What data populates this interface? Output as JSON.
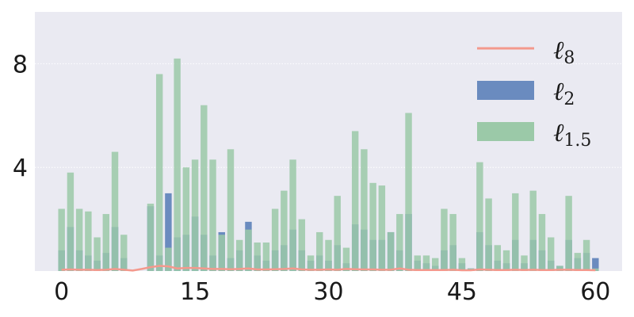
{
  "chart_data": {
    "type": "bar",
    "title": "",
    "xlabel": "",
    "ylabel": "",
    "xlim": [
      -3,
      63
    ],
    "ylim": [
      0,
      10
    ],
    "x_ticks": [
      0,
      15,
      30,
      45,
      60
    ],
    "x_tick_labels": [
      "0",
      "15",
      "30",
      "45",
      "60"
    ],
    "y_ticks": [
      4,
      8
    ],
    "y_tick_labels": [
      "4",
      "8"
    ],
    "grid": true,
    "legend_position": "top-right",
    "x": [
      0,
      1,
      2,
      3,
      4,
      5,
      6,
      7,
      8,
      9,
      10,
      11,
      12,
      13,
      14,
      15,
      16,
      17,
      18,
      19,
      20,
      21,
      22,
      23,
      24,
      25,
      26,
      27,
      28,
      29,
      30,
      31,
      32,
      33,
      34,
      35,
      36,
      37,
      38,
      39,
      40,
      41,
      42,
      43,
      44,
      45,
      46,
      47,
      48,
      49,
      50,
      51,
      52,
      53,
      54,
      55,
      56,
      57,
      58,
      59,
      60
    ],
    "series": [
      {
        "name": "ℓ8",
        "legend_base": "ℓ",
        "legend_sub": "8",
        "kind": "line",
        "color": "#f4998d",
        "values": [
          0.05,
          0.06,
          0.05,
          0.05,
          0.04,
          0.05,
          0.08,
          0.05,
          0.02,
          0.08,
          0.15,
          0.2,
          0.18,
          0.1,
          0.12,
          0.12,
          0.1,
          0.08,
          0.08,
          0.07,
          0.08,
          0.1,
          0.06,
          0.06,
          0.07,
          0.08,
          0.1,
          0.06,
          0.05,
          0.05,
          0.06,
          0.05,
          0.08,
          0.07,
          0.06,
          0.06,
          0.05,
          0.05,
          0.1,
          0.05,
          0.04,
          0.04,
          0.04,
          0.04,
          0.05,
          0.03,
          0.03,
          0.06,
          0.05,
          0.04,
          0.04,
          0.05,
          0.04,
          0.05,
          0.04,
          0.04,
          0.05,
          0.05,
          0.04,
          0.04,
          0.03
        ]
      },
      {
        "name": "ℓ2",
        "legend_base": "ℓ",
        "legend_sub": "2",
        "kind": "bar",
        "color": "#6a8bbf",
        "values": [
          0.8,
          1.7,
          0.8,
          0.6,
          0.4,
          0.7,
          1.7,
          0.5,
          0,
          0,
          2.5,
          0.6,
          3.0,
          1.3,
          1.4,
          2.1,
          1.4,
          0.6,
          1.5,
          0.5,
          0.8,
          1.9,
          0.6,
          0.4,
          0.8,
          1.0,
          1.6,
          0.8,
          0.4,
          0.6,
          0.4,
          1.0,
          0.3,
          1.8,
          1.6,
          1.2,
          1.2,
          1.5,
          0.8,
          2.2,
          0.4,
          0.3,
          0.2,
          0.8,
          1.0,
          0.3,
          0.1,
          1.5,
          1.0,
          0.4,
          0.3,
          1.2,
          0.3,
          1.2,
          0.8,
          0.4,
          0.2,
          1.2,
          0.5,
          0.7,
          0.5
        ]
      },
      {
        "name": "ℓ1.5",
        "legend_base": "ℓ",
        "legend_sub": "1.5",
        "kind": "bar",
        "color": "#9bc9a8",
        "values": [
          2.4,
          3.8,
          2.4,
          2.3,
          1.3,
          2.2,
          4.6,
          1.4,
          0,
          0,
          2.6,
          7.6,
          0.9,
          8.2,
          4.0,
          4.3,
          6.4,
          4.3,
          1.4,
          4.7,
          1.2,
          1.6,
          1.1,
          1.1,
          2.4,
          3.1,
          4.3,
          2.0,
          0.6,
          1.5,
          1.2,
          2.9,
          0.9,
          5.4,
          4.7,
          3.4,
          3.3,
          1.5,
          2.2,
          6.1,
          0.6,
          0.6,
          0.5,
          2.4,
          2.2,
          0.5,
          0.1,
          4.2,
          2.8,
          1.0,
          0.8,
          3.0,
          0.6,
          3.1,
          2.2,
          1.3,
          0.2,
          2.9,
          0.7,
          1.2,
          0.1
        ]
      }
    ]
  }
}
